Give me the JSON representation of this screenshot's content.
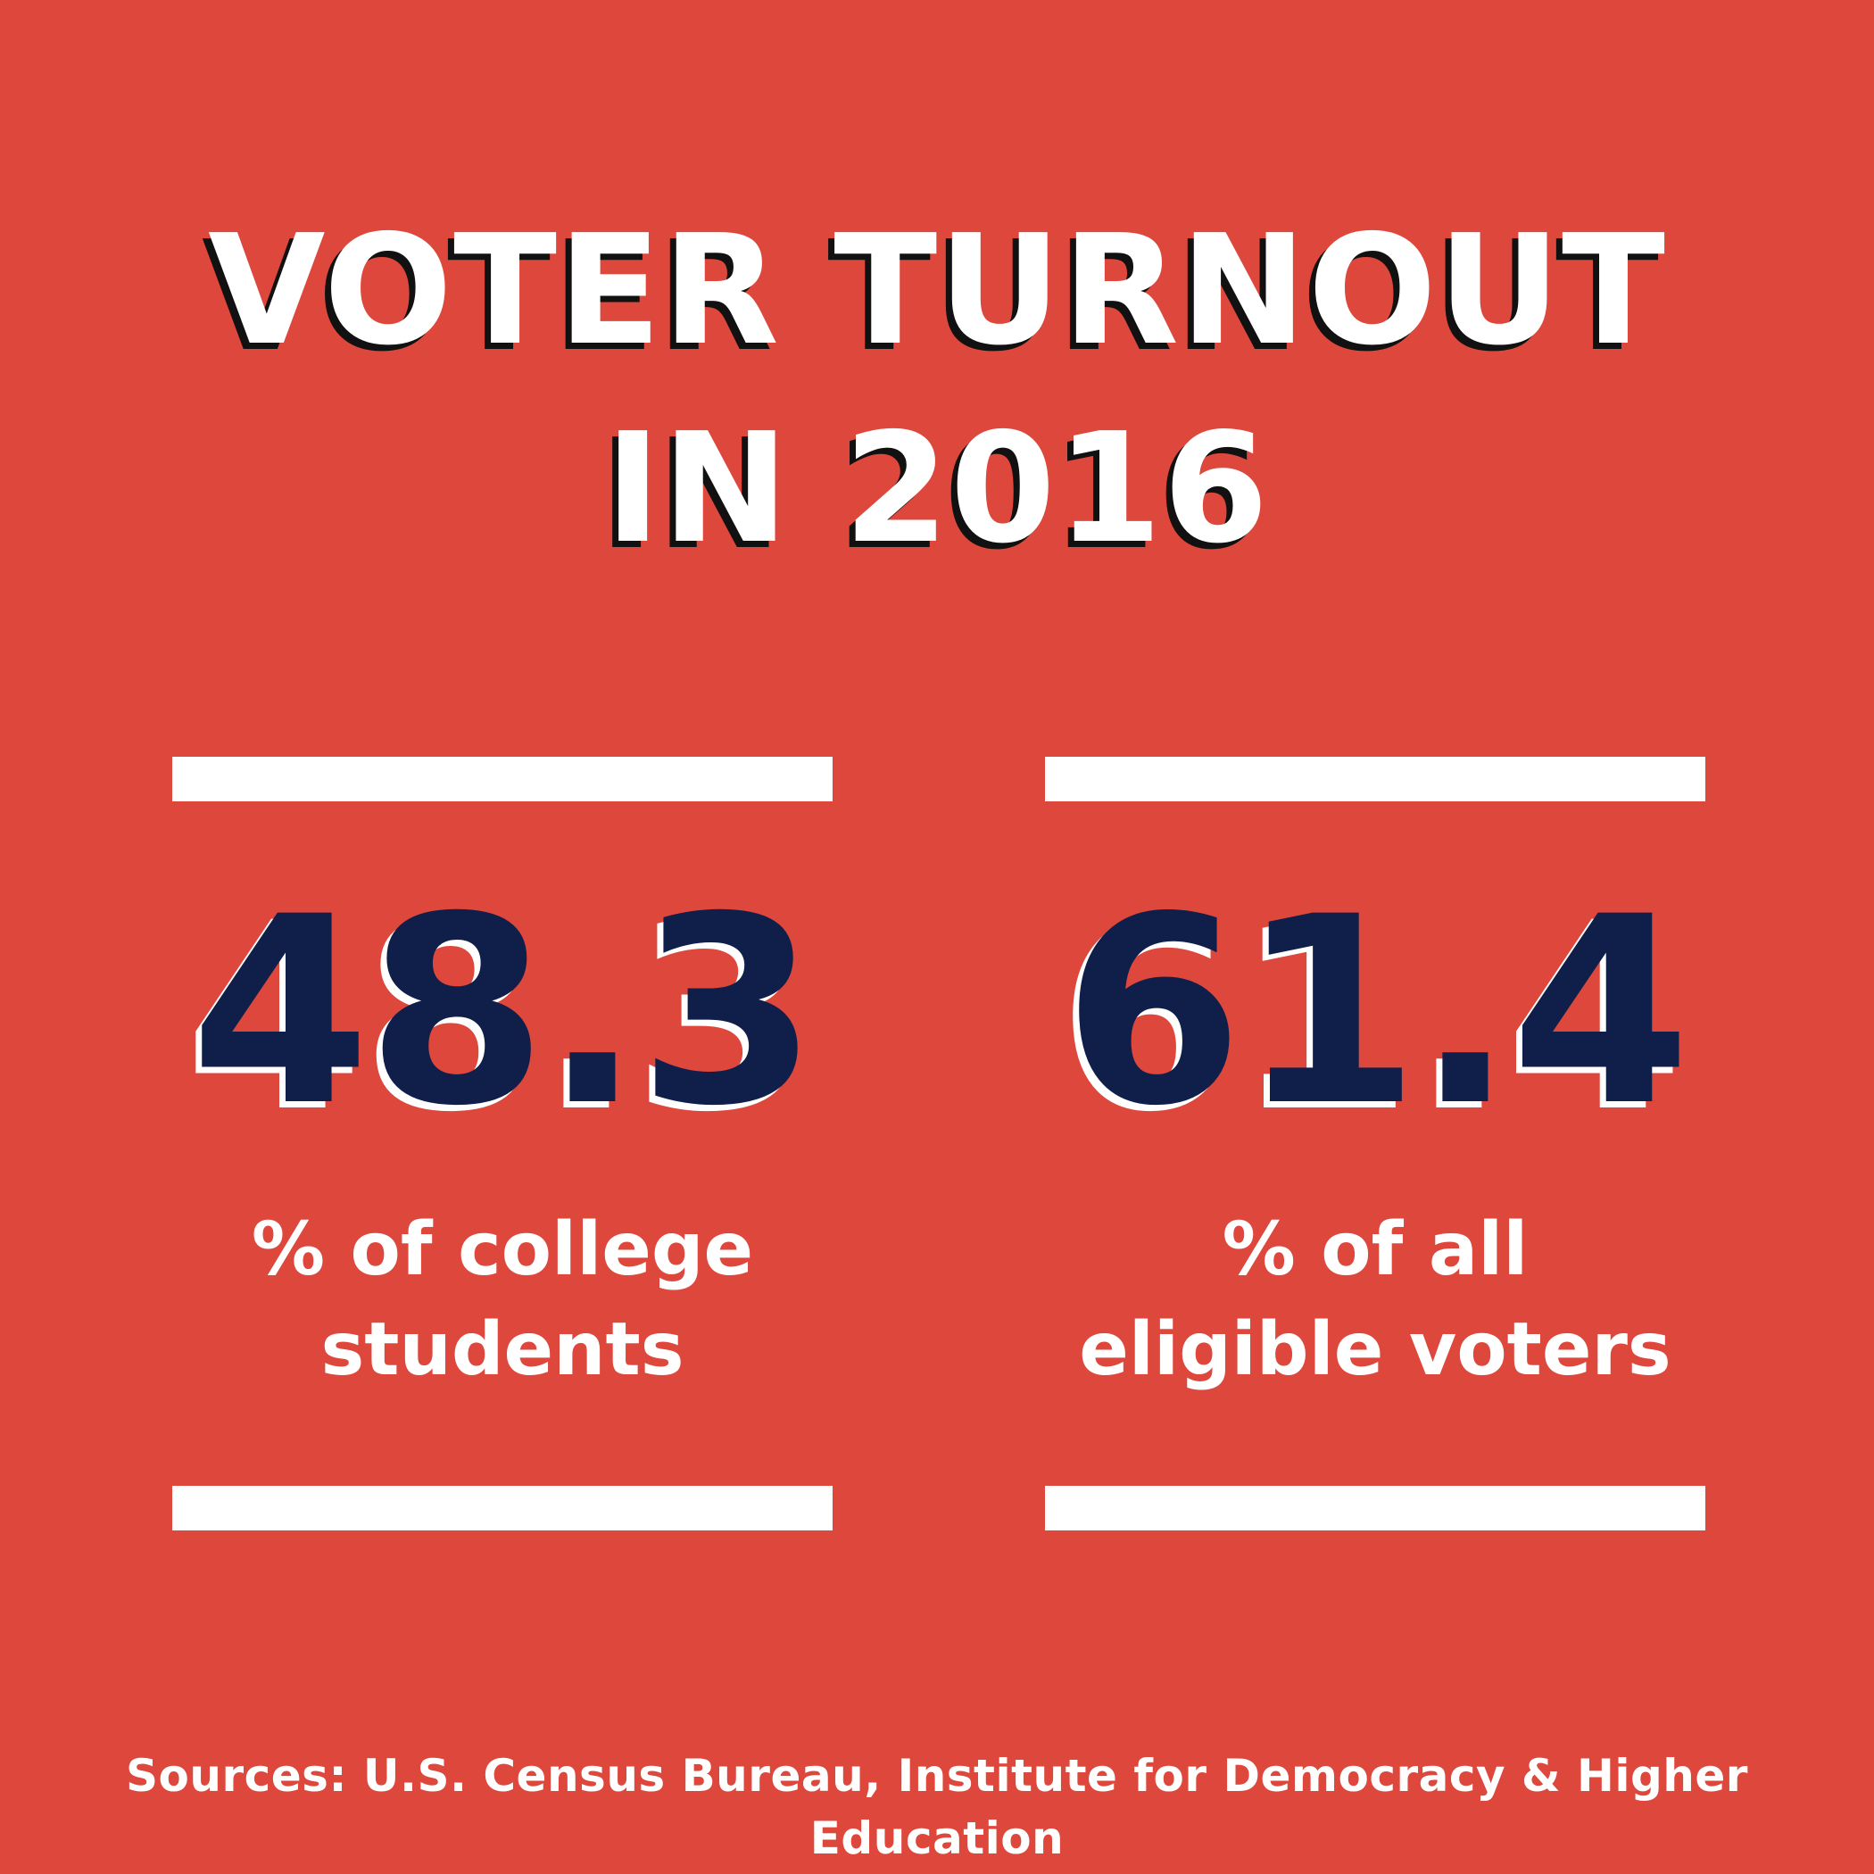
{
  "title": {
    "line1": "VOTER TURNOUT",
    "line2": "IN 2016"
  },
  "stats": [
    {
      "value": "48.3",
      "label_line1": "% of college",
      "label_line2": "students"
    },
    {
      "value": "61.4",
      "label_line1": "% of all",
      "label_line2": "eligible voters"
    }
  ],
  "sources": "Sources: U.S. Census Bureau, Institute for Democracy & Higher Education",
  "colors": {
    "background": "#de473c",
    "number": "#0f1f4a",
    "text": "#ffffff",
    "title_shadow": "#111111"
  }
}
